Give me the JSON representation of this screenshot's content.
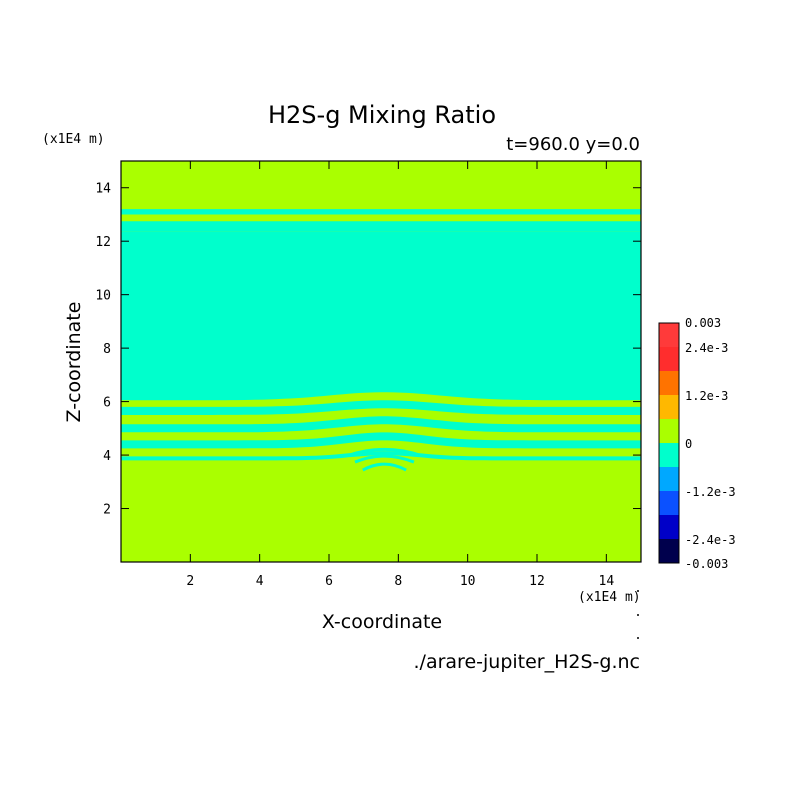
{
  "title": "H2S-g Mixing Ratio",
  "subtitle": "t=960.0 y=0.0",
  "file_label": "./arare-jupiter_H2S-g.nc",
  "colors": {
    "c0": "#00004d",
    "c1": "#0000c8",
    "c2": "#0b51ff",
    "c3": "#00a8ff",
    "c4": "#00ffcc",
    "c5": "#aaff00",
    "c6": "#ffb800",
    "c7": "#ff7300",
    "c8": "#ff2d2d",
    "c9": "#ff3a3a"
  },
  "chart_data": {
    "type": "heatmap",
    "title": "H2S-g Mixing Ratio",
    "xlabel": "X-coordinate",
    "ylabel": "Z-coordinate",
    "x_unit": "(x1E4 m)",
    "y_unit": "(x1E4 m)",
    "xlim": [
      0,
      15
    ],
    "ylim": [
      0,
      15
    ],
    "x_ticks": [
      "2",
      "4",
      "6",
      "8",
      "10",
      "12",
      "14"
    ],
    "y_ticks": [
      "2",
      "4",
      "6",
      "8",
      "10",
      "12",
      "14"
    ],
    "background_level": "c5",
    "bands": [
      {
        "z0": 12.35,
        "z1": 12.75,
        "level": "c4"
      },
      {
        "z0": 13.0,
        "z1": 13.2,
        "level": "c4"
      },
      {
        "z0": 6.05,
        "z1": 12.35,
        "level": "c4",
        "bump": 0.3,
        "bump_center": 7.6,
        "bump_width": 3.5
      },
      {
        "z0": 5.5,
        "z1": 5.8,
        "level": "c4",
        "bump": 0.25,
        "bump_center": 7.6,
        "bump_width": 3.2
      },
      {
        "z0": 4.85,
        "z1": 5.15,
        "level": "c4",
        "bump": 0.3,
        "bump_center": 7.6,
        "bump_width": 3.0
      },
      {
        "z0": 4.25,
        "z1": 4.55,
        "level": "c4",
        "bump": 0.3,
        "bump_center": 7.6,
        "bump_width": 2.6
      },
      {
        "z0": 3.8,
        "z1": 3.95,
        "level": "c4",
        "bump": 0.2,
        "bump_center": 7.6,
        "bump_width": 2.2
      }
    ],
    "colorbar": {
      "labels": [
        "0.003",
        "2.4e-3",
        "1.2e-3",
        "0",
        "-1.2e-3",
        "-2.4e-3",
        "-0.003"
      ],
      "levels": [
        "c9",
        "c8",
        "c7",
        "c6",
        "c5",
        "c4",
        "c3",
        "c2",
        "c1",
        "c0"
      ]
    }
  }
}
